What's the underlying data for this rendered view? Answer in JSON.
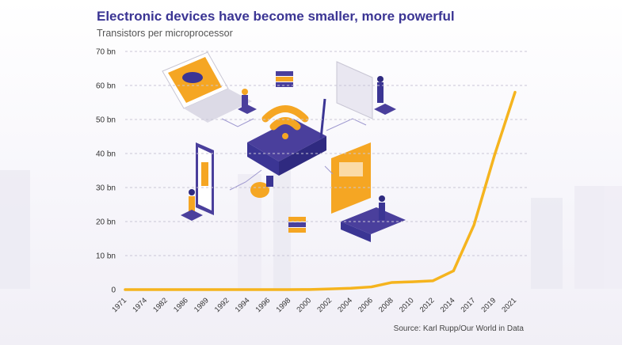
{
  "title": "Electronic devices have become smaller, more powerful",
  "subtitle": "Transistors per microprocessor",
  "source": "Source: Karl Rupp/Our World in Data",
  "colors": {
    "line": "#f5b41e",
    "title": "#3b3594",
    "grid": "#c9c6d6"
  },
  "chart_data": {
    "type": "line",
    "title": "Electronic devices have become smaller, more powerful",
    "subtitle": "Transistors per microprocessor",
    "xlabel": "",
    "ylabel": "",
    "ylim": [
      0,
      70
    ],
    "grid": true,
    "yticks": [
      0,
      10,
      20,
      30,
      40,
      50,
      60,
      70
    ],
    "ytick_labels": [
      "0",
      "10 bn",
      "20 bn",
      "30 bn",
      "40 bn",
      "50 bn",
      "60 bn",
      "70 bn"
    ],
    "xtick_labels": [
      "1971",
      "1974",
      "1982",
      "1986",
      "1989",
      "1992",
      "1994",
      "1996",
      "1998",
      "2000",
      "2002",
      "2004",
      "2006",
      "2008",
      "2010",
      "2012",
      "2014",
      "2017",
      "2019",
      "2021"
    ],
    "series": [
      {
        "values": [
          0,
          0,
          0,
          0,
          0,
          0,
          0,
          0,
          0,
          0.04,
          0.2,
          0.4,
          0.8,
          2.1,
          2.3,
          2.6,
          5.5,
          19,
          39.5,
          58
        ]
      }
    ]
  }
}
